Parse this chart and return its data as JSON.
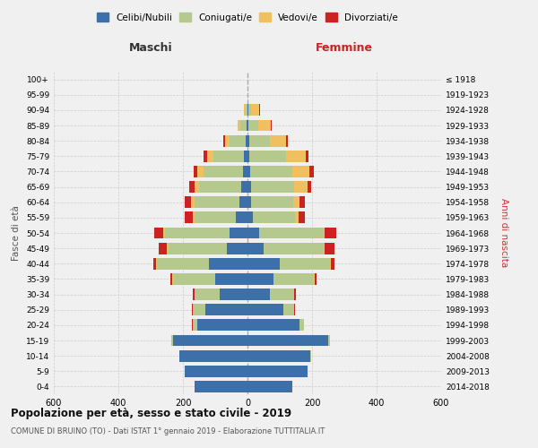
{
  "age_groups": [
    "0-4",
    "5-9",
    "10-14",
    "15-19",
    "20-24",
    "25-29",
    "30-34",
    "35-39",
    "40-44",
    "45-49",
    "50-54",
    "55-59",
    "60-64",
    "65-69",
    "70-74",
    "75-79",
    "80-84",
    "85-89",
    "90-94",
    "95-99",
    "100+"
  ],
  "birth_years": [
    "2014-2018",
    "2009-2013",
    "2004-2008",
    "1999-2003",
    "1994-1998",
    "1989-1993",
    "1984-1988",
    "1979-1983",
    "1974-1978",
    "1969-1973",
    "1964-1968",
    "1959-1963",
    "1954-1958",
    "1949-1953",
    "1944-1948",
    "1939-1943",
    "1934-1938",
    "1929-1933",
    "1924-1928",
    "1919-1923",
    "≤ 1918"
  ],
  "colors": {
    "celibe": "#3D6FA8",
    "coniugato": "#B5C98E",
    "vedovo": "#F0C060",
    "divorziato": "#CC2222"
  },
  "maschi": {
    "celibe": [
      165,
      195,
      210,
      230,
      155,
      130,
      85,
      100,
      120,
      65,
      55,
      35,
      25,
      20,
      15,
      10,
      5,
      3,
      1,
      0,
      0
    ],
    "coniugato": [
      0,
      0,
      2,
      5,
      15,
      40,
      80,
      130,
      160,
      180,
      200,
      130,
      140,
      130,
      120,
      95,
      50,
      18,
      5,
      0,
      0
    ],
    "vedovo": [
      0,
      0,
      0,
      0,
      0,
      0,
      0,
      2,
      2,
      5,
      5,
      5,
      10,
      15,
      20,
      20,
      15,
      10,
      4,
      0,
      0
    ],
    "divorziato": [
      0,
      0,
      0,
      0,
      2,
      2,
      5,
      8,
      10,
      25,
      30,
      25,
      20,
      15,
      12,
      10,
      5,
      0,
      1,
      0,
      0
    ]
  },
  "femmine": {
    "nubile": [
      140,
      185,
      195,
      250,
      160,
      110,
      70,
      80,
      100,
      50,
      35,
      18,
      12,
      10,
      8,
      5,
      5,
      3,
      2,
      0,
      0
    ],
    "coniugata": [
      0,
      0,
      2,
      5,
      15,
      35,
      75,
      125,
      155,
      185,
      200,
      130,
      130,
      135,
      130,
      115,
      65,
      30,
      10,
      0,
      0
    ],
    "vedova": [
      0,
      0,
      0,
      0,
      0,
      0,
      0,
      2,
      2,
      5,
      5,
      10,
      20,
      40,
      55,
      60,
      50,
      40,
      25,
      0,
      0
    ],
    "divorziata": [
      0,
      0,
      0,
      0,
      1,
      2,
      5,
      8,
      12,
      30,
      35,
      20,
      15,
      12,
      12,
      10,
      5,
      2,
      2,
      0,
      0
    ]
  },
  "title": "Popolazione per età, sesso e stato civile - 2019",
  "subtitle": "COMUNE DI BRUINO (TO) - Dati ISTAT 1° gennaio 2019 - Elaborazione TUTTITALIA.IT",
  "xlabel_left": "Maschi",
  "xlabel_right": "Femmine",
  "ylabel_left": "Fasce di età",
  "ylabel_right": "Anni di nascita",
  "xlim": 600,
  "background_color": "#f0f0f0",
  "legend_labels": [
    "Celibi/Nubili",
    "Coniugati/e",
    "Vedovi/e",
    "Divorziati/e"
  ]
}
